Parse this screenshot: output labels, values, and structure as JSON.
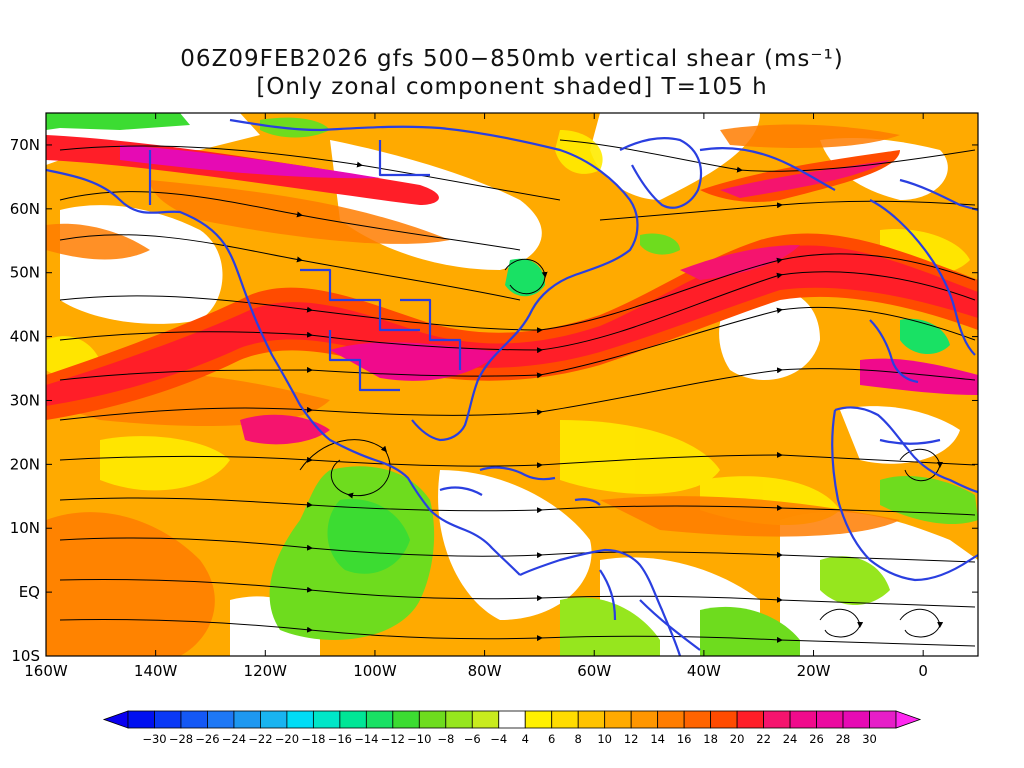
{
  "title": {
    "line1": "06Z09FEB2026 gfs 500−850mb vertical shear (ms⁻¹)",
    "line2": "[Only zonal component shaded] T=105 h"
  },
  "map": {
    "lon_range": [
      -160,
      10
    ],
    "lat_range": [
      -10,
      75
    ],
    "lon_tick_labels": [
      {
        "lon": -160,
        "label": "160W"
      },
      {
        "lon": -140,
        "label": "140W"
      },
      {
        "lon": -120,
        "label": "120W"
      },
      {
        "lon": -100,
        "label": "100W"
      },
      {
        "lon": -80,
        "label": "80W"
      },
      {
        "lon": -60,
        "label": "60W"
      },
      {
        "lon": -40,
        "label": "40W"
      },
      {
        "lon": -20,
        "label": "20W"
      },
      {
        "lon": 0,
        "label": "0"
      }
    ],
    "lat_tick_labels": [
      {
        "lat": 70,
        "label": "70N"
      },
      {
        "lat": 60,
        "label": "60N"
      },
      {
        "lat": 50,
        "label": "50N"
      },
      {
        "lat": 40,
        "label": "40N"
      },
      {
        "lat": 30,
        "label": "30N"
      },
      {
        "lat": 20,
        "label": "20N"
      },
      {
        "lat": 10,
        "label": "10N"
      },
      {
        "lat": 0,
        "label": "EQ"
      },
      {
        "lat": -10,
        "label": "10S"
      }
    ],
    "coastline_color": "#2a3fe0"
  },
  "colorbar": {
    "labels": [
      "−30",
      "−28",
      "−26",
      "−24",
      "−22",
      "−20",
      "−18",
      "−16",
      "−14",
      "−12",
      "−10",
      "−8",
      "−6",
      "−4",
      "4",
      "6",
      "8",
      "10",
      "12",
      "14",
      "16",
      "18",
      "20",
      "22",
      "24",
      "26",
      "28",
      "30"
    ],
    "colors": [
      "#0010f0",
      "#0a38f5",
      "#1458f5",
      "#1e78f5",
      "#1e98f0",
      "#19b4f0",
      "#00dcf5",
      "#00e6c8",
      "#00e696",
      "#19e164",
      "#3cdc32",
      "#6edc1e",
      "#96e61e",
      "#c8eb1e",
      "#ffffff",
      "#fff000",
      "#ffdc00",
      "#ffc300",
      "#ffaa00",
      "#ff9600",
      "#ff7d00",
      "#ff6400",
      "#ff4b00",
      "#ff1e28",
      "#f5146e",
      "#f00a8c",
      "#eb0aa0",
      "#e60ab4",
      "#e61ec8"
    ],
    "left_arrow_color": "#0a00f0",
    "right_arrow_color": "#ff28f0"
  }
}
